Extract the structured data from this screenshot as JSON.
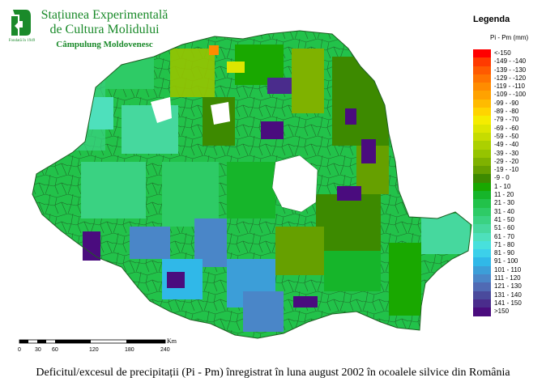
{
  "header": {
    "line1": "Stațiunea Experimentală",
    "line2": "de Cultura Molidului",
    "line3": "Câmpulung Moldovenesc",
    "logo_caption": "Fondată în 1949",
    "logo_icon": "forest-station-logo-icon",
    "text_color": "#1a8a2a"
  },
  "legend": {
    "title": "Legenda",
    "subtitle": "Pi - Pm (mm)",
    "items": [
      {
        "label": "<-150",
        "color": "#ff0000"
      },
      {
        "label": "-149 - -140",
        "color": "#ff3a00"
      },
      {
        "label": "-139 - -130",
        "color": "#ff5a00"
      },
      {
        "label": "-129 - -120",
        "color": "#ff7400"
      },
      {
        "label": "-119 - -110",
        "color": "#ff8c00"
      },
      {
        "label": "-109 - -100",
        "color": "#ffa200"
      },
      {
        "label": "-99 - -90",
        "color": "#ffbb00"
      },
      {
        "label": "-89 - -80",
        "color": "#ffd400"
      },
      {
        "label": "-79 - -70",
        "color": "#f5ec00"
      },
      {
        "label": "-69 - -60",
        "color": "#dde600"
      },
      {
        "label": "-59 - -50",
        "color": "#c6dc00"
      },
      {
        "label": "-49 - -40",
        "color": "#acd000"
      },
      {
        "label": "-39 - -30",
        "color": "#96c400"
      },
      {
        "label": "-29 - -20",
        "color": "#7fb200"
      },
      {
        "label": "-19 - -10",
        "color": "#66a000"
      },
      {
        "label": "-9 - 0",
        "color": "#3d8a00"
      },
      {
        "label": "1 - 10",
        "color": "#19a800"
      },
      {
        "label": "11 - 20",
        "color": "#16b52a"
      },
      {
        "label": "21 - 30",
        "color": "#22c24a"
      },
      {
        "label": "31 - 40",
        "color": "#2ecb66"
      },
      {
        "label": "41 - 50",
        "color": "#3ad282"
      },
      {
        "label": "51 - 60",
        "color": "#46d89e"
      },
      {
        "label": "61 - 70",
        "color": "#4ee0bc"
      },
      {
        "label": "71 - 80",
        "color": "#48e0dc"
      },
      {
        "label": "81 - 90",
        "color": "#3cd0ea"
      },
      {
        "label": "91 - 100",
        "color": "#30b8e8"
      },
      {
        "label": "101 - 110",
        "color": "#3c9ed8"
      },
      {
        "label": "111 - 120",
        "color": "#4a86c8"
      },
      {
        "label": "121 - 130",
        "color": "#506ab4"
      },
      {
        "label": "131 - 140",
        "color": "#4a4a9c"
      },
      {
        "label": "141 - 150",
        "color": "#4a2c8c"
      },
      {
        "label": ">150",
        "color": "#4a0c7e"
      }
    ]
  },
  "scale": {
    "unit": "Km",
    "ticks": [
      "0",
      "30",
      "60",
      "120",
      "180",
      "240"
    ]
  },
  "caption": "Deficitul/excesul de precipitații (Pi - Pm) înregistrat în luna august 2002 în ocoalele silvice din România"
}
